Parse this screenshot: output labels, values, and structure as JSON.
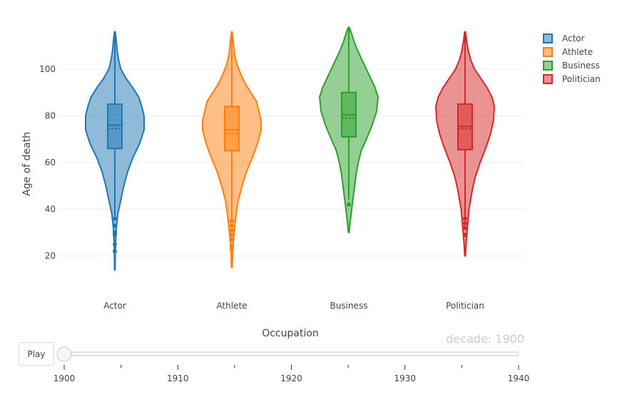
{
  "chart_data": {
    "type": "violin",
    "title": "",
    "xlabel": "Occupation",
    "ylabel": "Age of death",
    "categories": [
      "Actor",
      "Athlete",
      "Business",
      "Politician"
    ],
    "y_ticks": [
      20,
      40,
      60,
      80,
      100
    ],
    "ylim": [
      10,
      118
    ],
    "grid": true,
    "legend_position": "top-right",
    "series": [
      {
        "name": "Actor",
        "color": "#1f77b4",
        "min": 14,
        "max": 116,
        "q1": 66,
        "median": 76,
        "q3": 85,
        "mean": 74.5,
        "whisker_low": 37,
        "whisker_high": 116,
        "outliers": [
          22,
          25,
          29,
          30,
          33,
          36
        ],
        "density": [
          [
            14,
            0.4
          ],
          [
            20,
            0.6
          ],
          [
            26,
            1
          ],
          [
            32,
            2
          ],
          [
            38,
            4
          ],
          [
            44,
            8
          ],
          [
            50,
            12
          ],
          [
            56,
            17
          ],
          [
            62,
            24
          ],
          [
            68,
            33
          ],
          [
            74,
            39
          ],
          [
            80,
            39
          ],
          [
            84,
            36
          ],
          [
            88,
            32
          ],
          [
            92,
            24
          ],
          [
            96,
            15
          ],
          [
            100,
            8
          ],
          [
            104,
            5
          ],
          [
            108,
            3
          ],
          [
            112,
            2
          ],
          [
            116,
            0.5
          ]
        ]
      },
      {
        "name": "Athlete",
        "color": "#ff7f0e",
        "min": 15,
        "max": 116,
        "q1": 65,
        "median": 74,
        "q3": 84,
        "mean": 72.5,
        "whisker_low": 36,
        "whisker_high": 116,
        "outliers": [
          23,
          24,
          27,
          29,
          31,
          33,
          35
        ],
        "density": [
          [
            15,
            0.5
          ],
          [
            20,
            1
          ],
          [
            26,
            2
          ],
          [
            32,
            4
          ],
          [
            38,
            6
          ],
          [
            44,
            9
          ],
          [
            50,
            14
          ],
          [
            56,
            20
          ],
          [
            62,
            28
          ],
          [
            68,
            35
          ],
          [
            74,
            40
          ],
          [
            78,
            40
          ],
          [
            82,
            37
          ],
          [
            86,
            34
          ],
          [
            90,
            26
          ],
          [
            94,
            18
          ],
          [
            98,
            12
          ],
          [
            102,
            7
          ],
          [
            106,
            4
          ],
          [
            110,
            2.5
          ],
          [
            116,
            0.5
          ]
        ]
      },
      {
        "name": "Business",
        "color": "#2ca02c",
        "min": 30,
        "max": 118,
        "q1": 71,
        "median": 80.5,
        "q3": 90,
        "mean": 79,
        "whisker_low": 44,
        "whisker_high": 118,
        "outliers": [
          42
        ],
        "density": [
          [
            30,
            0.5
          ],
          [
            35,
            2
          ],
          [
            40,
            4
          ],
          [
            45,
            6
          ],
          [
            50,
            8
          ],
          [
            55,
            10
          ],
          [
            60,
            13
          ],
          [
            65,
            17
          ],
          [
            70,
            24
          ],
          [
            76,
            32
          ],
          [
            82,
            38
          ],
          [
            88,
            40
          ],
          [
            92,
            36
          ],
          [
            96,
            30
          ],
          [
            100,
            24
          ],
          [
            104,
            18
          ],
          [
            108,
            12
          ],
          [
            112,
            7
          ],
          [
            116,
            3
          ],
          [
            118,
            0.5
          ]
        ]
      },
      {
        "name": "Politician",
        "color": "#d62728",
        "min": 20,
        "max": 116,
        "q1": 65.5,
        "median": 75.5,
        "q3": 85,
        "mean": 74.5,
        "whisker_low": 37,
        "whisker_high": 116,
        "outliers": [
          29,
          32,
          34,
          36
        ],
        "density": [
          [
            20,
            0.5
          ],
          [
            24,
            1
          ],
          [
            28,
            2
          ],
          [
            32,
            3
          ],
          [
            36,
            4
          ],
          [
            40,
            5
          ],
          [
            44,
            7
          ],
          [
            48,
            9
          ],
          [
            54,
            13
          ],
          [
            60,
            19
          ],
          [
            66,
            26
          ],
          [
            72,
            32
          ],
          [
            78,
            36
          ],
          [
            84,
            37
          ],
          [
            88,
            34
          ],
          [
            92,
            28
          ],
          [
            96,
            20
          ],
          [
            100,
            12
          ],
          [
            104,
            7
          ],
          [
            108,
            4
          ],
          [
            112,
            2
          ],
          [
            116,
            0.5
          ]
        ]
      }
    ]
  },
  "legend": {
    "items": [
      {
        "label": "Actor",
        "color": "#1f77b4"
      },
      {
        "label": "Athlete",
        "color": "#ff7f0e"
      },
      {
        "label": "Business",
        "color": "#2ca02c"
      },
      {
        "label": "Politician",
        "color": "#d62728"
      }
    ]
  },
  "slider": {
    "current_label": "decade: 1900",
    "value": 1900,
    "range": [
      1900,
      1940
    ],
    "ticks": [
      "1900",
      "1910",
      "1920",
      "1930",
      "1940"
    ]
  },
  "controls": {
    "play_label": "Play"
  }
}
